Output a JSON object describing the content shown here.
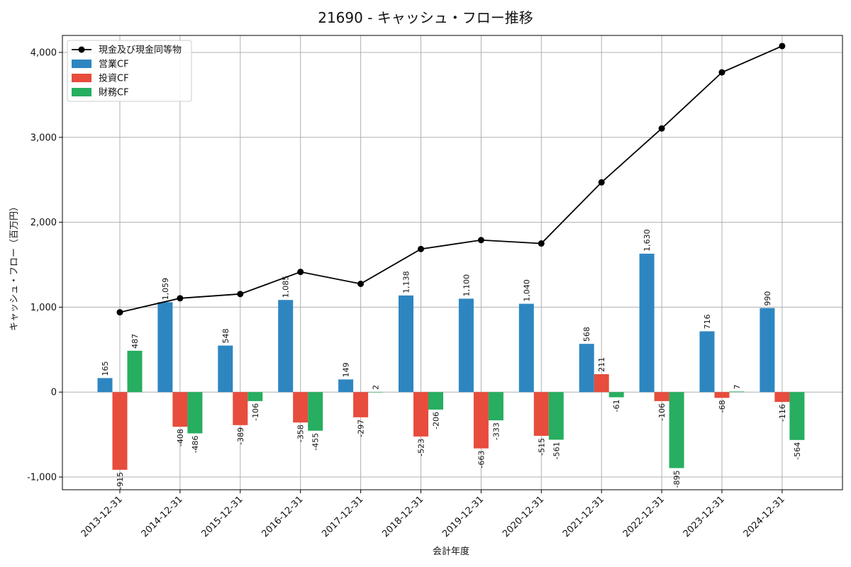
{
  "chart_data": {
    "type": "bar",
    "title": "21690 - キャッシュ・フロー推移",
    "xlabel": "会計年度",
    "ylabel": "キャッシュ・フロー（百万円）",
    "ylim": [
      -1150,
      4200
    ],
    "yticks": [
      -1000,
      0,
      1000,
      2000,
      3000,
      4000
    ],
    "ytick_labels": [
      "-1,000",
      "0",
      "1,000",
      "2,000",
      "3,000",
      "4,000"
    ],
    "grid": true,
    "legend_position": "top-left",
    "categories": [
      "2013-12-31",
      "2014-12-31",
      "2015-12-31",
      "2016-12-31",
      "2017-12-31",
      "2018-12-31",
      "2019-12-31",
      "2020-12-31",
      "2021-12-31",
      "2022-12-31",
      "2023-12-31",
      "2024-12-31"
    ],
    "series": [
      {
        "name": "営業CF",
        "kind": "bar",
        "color": "#2e86c1",
        "values": [
          165,
          1059,
          548,
          1085,
          149,
          1138,
          1100,
          1040,
          568,
          1630,
          716,
          990
        ],
        "labels": [
          "165",
          "1,059",
          "548",
          "1,085",
          "149",
          "1,138",
          "1,100",
          "1,040",
          "568",
          "1,630",
          "716",
          "990"
        ]
      },
      {
        "name": "投資CF",
        "kind": "bar",
        "color": "#e74c3c",
        "values": [
          -915,
          -408,
          -389,
          -358,
          -297,
          -523,
          -663,
          -515,
          211,
          -106,
          -68,
          -116
        ],
        "labels": [
          "-915",
          "-408",
          "-389",
          "-358",
          "-297",
          "-523",
          "-663",
          "-515",
          "211",
          "-106",
          "-68",
          "-116"
        ]
      },
      {
        "name": "財務CF",
        "kind": "bar",
        "color": "#27ae60",
        "values": [
          487,
          -486,
          -106,
          -455,
          2,
          -206,
          -333,
          -561,
          -61,
          -895,
          7,
          -564
        ],
        "labels": [
          "487",
          "-486",
          "-106",
          "-455",
          "2",
          "-206",
          "-333",
          "-561",
          "-61",
          "-895",
          "7",
          "-564"
        ]
      },
      {
        "name": "現金及び現金同等物",
        "kind": "line",
        "color": "#000000",
        "values": [
          940,
          1105,
          1155,
          1415,
          1275,
          1685,
          1790,
          1750,
          2470,
          3105,
          3765,
          4075
        ]
      }
    ]
  }
}
